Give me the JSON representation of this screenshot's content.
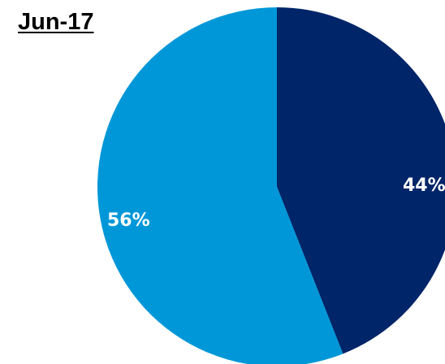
{
  "chart_data": {
    "type": "pie",
    "title": "Jun-17",
    "slices": [
      {
        "label": "44%",
        "value": 44,
        "color": "#002569"
      },
      {
        "label": "56%",
        "value": 56,
        "color": "#0097d8"
      }
    ]
  }
}
